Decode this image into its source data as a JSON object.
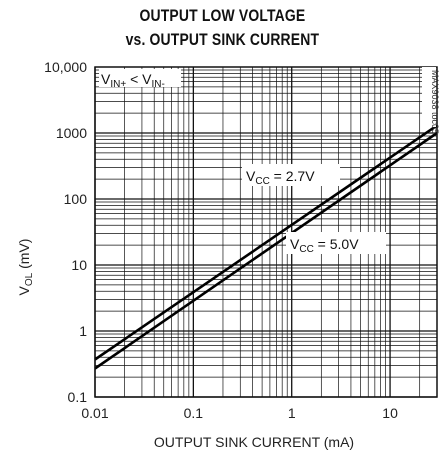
{
  "chart_data": {
    "type": "line",
    "title_line1": "OUTPUT LOW VOLTAGE",
    "title_line2": "vs. OUTPUT SINK CURRENT",
    "xlabel": "OUTPUT SINK CURRENT (mA)",
    "ylabel_main": "V",
    "ylabel_sub": "OL",
    "ylabel_unit": " (mV)",
    "x_scale": "log",
    "y_scale": "log",
    "xlim": [
      0.01,
      30
    ],
    "ylim": [
      0.1,
      10000
    ],
    "x_ticks": [
      "0.01",
      "0.1",
      "1",
      "10"
    ],
    "y_ticks": [
      "0.1",
      "1",
      "10",
      "100",
      "1000",
      "10,000"
    ],
    "grid": true,
    "condition": {
      "main1": "V",
      "sub1": "IN+",
      "mid": " < V",
      "sub2": "IN-"
    },
    "part_number": "MAX9038 toc05",
    "series": [
      {
        "label_main": "V",
        "label_sub": "CC",
        "label_value": " = 2.7V",
        "x": [
          0.01,
          30
        ],
        "y": [
          0.37,
          1300
        ]
      },
      {
        "label_main": "V",
        "label_sub": "CC",
        "label_value": " = 5.0V",
        "x": [
          0.01,
          30
        ],
        "y": [
          0.27,
          1000
        ]
      }
    ]
  }
}
